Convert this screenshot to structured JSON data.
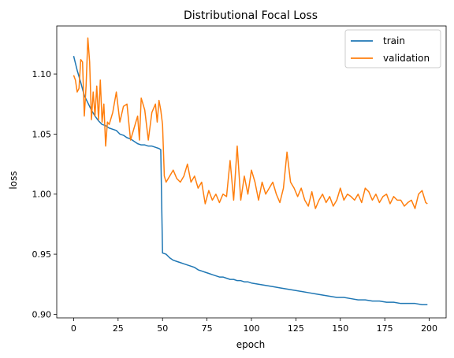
{
  "chart_data": {
    "type": "line",
    "title": "Distributional Focal Loss",
    "xlabel": "epoch",
    "ylabel": "loss",
    "xlim": [
      -9.5,
      209.5
    ],
    "ylim": [
      0.897,
      1.14
    ],
    "xticks": [
      0,
      25,
      50,
      75,
      100,
      125,
      150,
      175,
      200
    ],
    "yticks": [
      0.9,
      0.95,
      1.0,
      1.05,
      1.1
    ],
    "ytick_labels": [
      "0.90",
      "0.95",
      "1.00",
      "1.05",
      "1.10"
    ],
    "grid": false,
    "legend": "top-right",
    "series": [
      {
        "name": "train",
        "color": "#1f77b4",
        "points": [
          [
            0,
            1.115
          ],
          [
            2,
            1.103
          ],
          [
            4,
            1.093
          ],
          [
            6,
            1.082
          ],
          [
            8,
            1.076
          ],
          [
            10,
            1.07
          ],
          [
            12,
            1.065
          ],
          [
            14,
            1.061
          ],
          [
            16,
            1.058
          ],
          [
            18,
            1.057
          ],
          [
            20,
            1.055
          ],
          [
            22,
            1.054
          ],
          [
            24,
            1.053
          ],
          [
            26,
            1.05
          ],
          [
            28,
            1.049
          ],
          [
            30,
            1.047
          ],
          [
            32,
            1.046
          ],
          [
            34,
            1.044
          ],
          [
            36,
            1.042
          ],
          [
            38,
            1.041
          ],
          [
            40,
            1.041
          ],
          [
            42,
            1.04
          ],
          [
            44,
            1.04
          ],
          [
            46,
            1.039
          ],
          [
            48,
            1.038
          ],
          [
            49,
            1.037
          ],
          [
            50,
            0.951
          ],
          [
            52,
            0.95
          ],
          [
            54,
            0.947
          ],
          [
            56,
            0.945
          ],
          [
            58,
            0.944
          ],
          [
            60,
            0.943
          ],
          [
            62,
            0.942
          ],
          [
            64,
            0.941
          ],
          [
            66,
            0.94
          ],
          [
            68,
            0.939
          ],
          [
            70,
            0.937
          ],
          [
            72,
            0.936
          ],
          [
            74,
            0.935
          ],
          [
            76,
            0.934
          ],
          [
            78,
            0.933
          ],
          [
            80,
            0.932
          ],
          [
            82,
            0.931
          ],
          [
            84,
            0.931
          ],
          [
            86,
            0.93
          ],
          [
            88,
            0.929
          ],
          [
            90,
            0.929
          ],
          [
            92,
            0.928
          ],
          [
            94,
            0.928
          ],
          [
            96,
            0.927
          ],
          [
            98,
            0.927
          ],
          [
            100,
            0.926
          ],
          [
            104,
            0.925
          ],
          [
            108,
            0.924
          ],
          [
            112,
            0.923
          ],
          [
            116,
            0.922
          ],
          [
            120,
            0.921
          ],
          [
            124,
            0.92
          ],
          [
            128,
            0.919
          ],
          [
            132,
            0.918
          ],
          [
            136,
            0.917
          ],
          [
            140,
            0.916
          ],
          [
            144,
            0.915
          ],
          [
            148,
            0.914
          ],
          [
            152,
            0.914
          ],
          [
            156,
            0.913
          ],
          [
            160,
            0.912
          ],
          [
            164,
            0.912
          ],
          [
            168,
            0.911
          ],
          [
            172,
            0.911
          ],
          [
            176,
            0.91
          ],
          [
            180,
            0.91
          ],
          [
            184,
            0.909
          ],
          [
            188,
            0.909
          ],
          [
            192,
            0.909
          ],
          [
            196,
            0.908
          ],
          [
            199,
            0.908
          ]
        ]
      },
      {
        "name": "validation",
        "color": "#ff7f0e",
        "points": [
          [
            0,
            1.099
          ],
          [
            1,
            1.095
          ],
          [
            2,
            1.085
          ],
          [
            3,
            1.088
          ],
          [
            4,
            1.112
          ],
          [
            5,
            1.11
          ],
          [
            6,
            1.065
          ],
          [
            7,
            1.09
          ],
          [
            8,
            1.13
          ],
          [
            9,
            1.11
          ],
          [
            10,
            1.062
          ],
          [
            11,
            1.085
          ],
          [
            12,
            1.065
          ],
          [
            13,
            1.09
          ],
          [
            14,
            1.062
          ],
          [
            15,
            1.095
          ],
          [
            16,
            1.06
          ],
          [
            17,
            1.075
          ],
          [
            18,
            1.04
          ],
          [
            19,
            1.06
          ],
          [
            20,
            1.058
          ],
          [
            22,
            1.068
          ],
          [
            24,
            1.085
          ],
          [
            26,
            1.06
          ],
          [
            28,
            1.073
          ],
          [
            30,
            1.075
          ],
          [
            32,
            1.045
          ],
          [
            34,
            1.055
          ],
          [
            36,
            1.065
          ],
          [
            37,
            1.045
          ],
          [
            38,
            1.08
          ],
          [
            40,
            1.07
          ],
          [
            42,
            1.045
          ],
          [
            44,
            1.068
          ],
          [
            46,
            1.075
          ],
          [
            47,
            1.06
          ],
          [
            48,
            1.078
          ],
          [
            49,
            1.07
          ],
          [
            50,
            1.058
          ],
          [
            51,
            1.015
          ],
          [
            52,
            1.01
          ],
          [
            54,
            1.015
          ],
          [
            56,
            1.02
          ],
          [
            58,
            1.013
          ],
          [
            60,
            1.01
          ],
          [
            62,
            1.015
          ],
          [
            64,
            1.025
          ],
          [
            66,
            1.01
          ],
          [
            68,
            1.015
          ],
          [
            70,
            1.005
          ],
          [
            72,
            1.01
          ],
          [
            74,
            0.992
          ],
          [
            76,
            1.003
          ],
          [
            78,
            0.995
          ],
          [
            80,
            1.0
          ],
          [
            82,
            0.993
          ],
          [
            84,
            1.0
          ],
          [
            86,
            0.998
          ],
          [
            88,
            1.028
          ],
          [
            90,
            0.995
          ],
          [
            92,
            1.04
          ],
          [
            94,
            0.995
          ],
          [
            96,
            1.015
          ],
          [
            98,
            1.0
          ],
          [
            100,
            1.02
          ],
          [
            102,
            1.01
          ],
          [
            104,
            0.995
          ],
          [
            106,
            1.01
          ],
          [
            108,
            1.0
          ],
          [
            110,
            1.005
          ],
          [
            112,
            1.01
          ],
          [
            114,
            1.0
          ],
          [
            116,
            0.993
          ],
          [
            118,
            1.005
          ],
          [
            120,
            1.035
          ],
          [
            122,
            1.01
          ],
          [
            124,
            1.005
          ],
          [
            126,
            0.998
          ],
          [
            128,
            1.005
          ],
          [
            130,
            0.995
          ],
          [
            132,
            0.99
          ],
          [
            134,
            1.002
          ],
          [
            136,
            0.988
          ],
          [
            138,
            0.995
          ],
          [
            140,
            1.0
          ],
          [
            142,
            0.993
          ],
          [
            144,
            0.998
          ],
          [
            146,
            0.99
          ],
          [
            148,
            0.995
          ],
          [
            150,
            1.005
          ],
          [
            152,
            0.995
          ],
          [
            154,
            1.0
          ],
          [
            156,
            0.998
          ],
          [
            158,
            0.995
          ],
          [
            160,
            1.0
          ],
          [
            162,
            0.993
          ],
          [
            164,
            1.005
          ],
          [
            166,
            1.002
          ],
          [
            168,
            0.995
          ],
          [
            170,
            1.0
          ],
          [
            172,
            0.993
          ],
          [
            174,
            0.998
          ],
          [
            176,
            1.0
          ],
          [
            178,
            0.992
          ],
          [
            180,
            0.998
          ],
          [
            182,
            0.995
          ],
          [
            184,
            0.995
          ],
          [
            186,
            0.99
          ],
          [
            188,
            0.993
          ],
          [
            190,
            0.995
          ],
          [
            192,
            0.988
          ],
          [
            194,
            1.0
          ],
          [
            196,
            1.003
          ],
          [
            198,
            0.993
          ],
          [
            199,
            0.992
          ]
        ]
      }
    ]
  }
}
